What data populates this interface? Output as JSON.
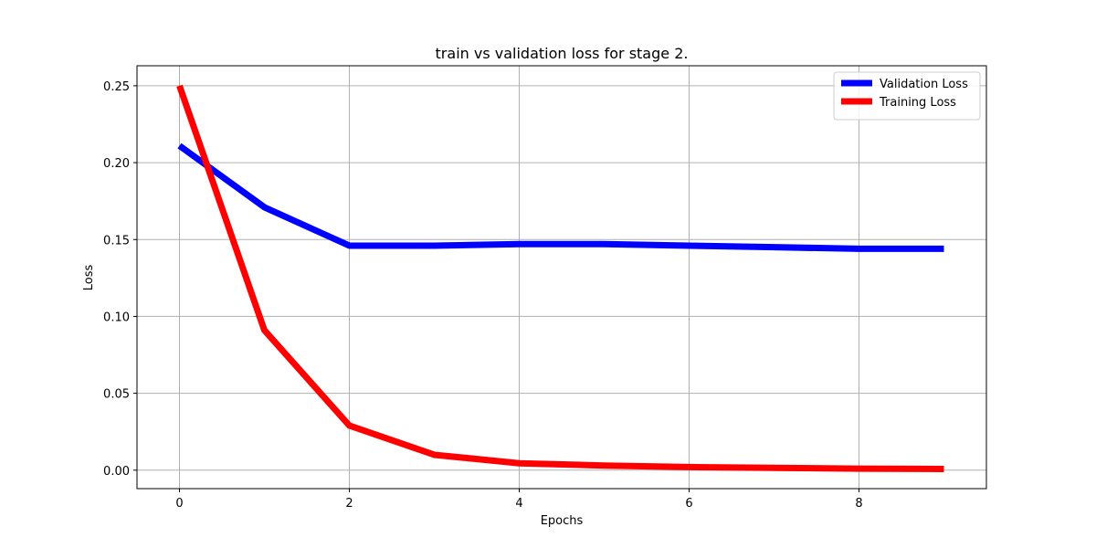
{
  "chart_data": {
    "type": "line",
    "title": "train vs validation loss for stage 2.",
    "xlabel": "Epochs",
    "ylabel": "Loss",
    "x": [
      0,
      1,
      2,
      3,
      4,
      5,
      6,
      7,
      8,
      9
    ],
    "xlim": [
      -0.5,
      9.5
    ],
    "ylim": [
      -0.012,
      0.263
    ],
    "x_ticks": [
      0,
      2,
      4,
      6,
      8
    ],
    "x_tick_labels": [
      "0",
      "2",
      "4",
      "6",
      "8"
    ],
    "y_ticks": [
      0.0,
      0.05,
      0.1,
      0.15,
      0.2,
      0.25
    ],
    "y_tick_labels": [
      "0.00",
      "0.05",
      "0.10",
      "0.15",
      "0.20",
      "0.25"
    ],
    "grid": true,
    "legend_position": "top-right",
    "series": [
      {
        "name": "Validation Loss",
        "color": "#0000ff",
        "values": [
          0.211,
          0.171,
          0.146,
          0.146,
          0.147,
          0.147,
          0.146,
          0.145,
          0.144,
          0.144
        ]
      },
      {
        "name": "Training Loss",
        "color": "#ff0000",
        "values": [
          0.25,
          0.091,
          0.029,
          0.01,
          0.0045,
          0.003,
          0.002,
          0.0015,
          0.001,
          0.0008
        ]
      }
    ]
  }
}
